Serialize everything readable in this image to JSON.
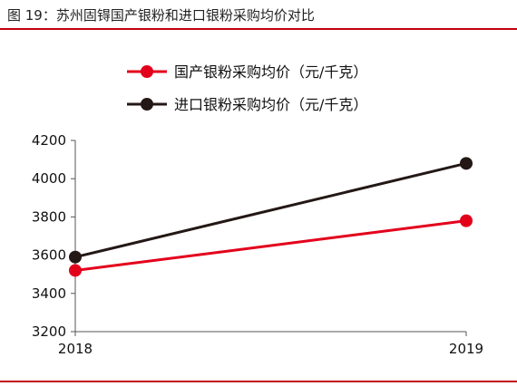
{
  "figure": {
    "title": "图 19：苏州固锝国产银粉和进口银粉采购均价对比",
    "accent_color": "#c0000b"
  },
  "chart_data": {
    "type": "line",
    "categories": [
      "2018",
      "2019"
    ],
    "series": [
      {
        "name": "国产银粉采购均价（元/千克）",
        "color": "#e3001b",
        "values": [
          3520,
          3780
        ]
      },
      {
        "name": "进口银粉采购均价（元/千克）",
        "color": "#231815",
        "values": [
          3590,
          4080
        ]
      }
    ],
    "ylim": [
      3200,
      4200
    ],
    "yticks": [
      3200,
      3400,
      3600,
      3800,
      4000,
      4200
    ],
    "legend_position": "top-center",
    "grid": false
  }
}
